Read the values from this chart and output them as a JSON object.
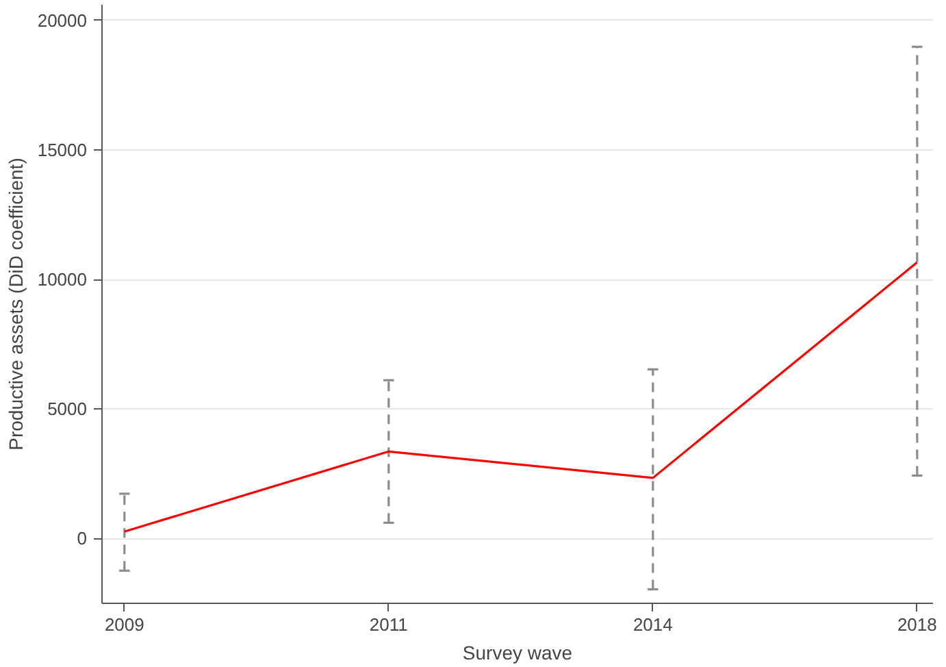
{
  "chart_data": {
    "type": "line",
    "xlabel": "Survey wave",
    "ylabel": "Productive assets (DiD coefficient)",
    "categories": [
      "2009",
      "2011",
      "2014",
      "2018"
    ],
    "series": [
      {
        "color": "#ff0000",
        "values": [
          270,
          3360,
          2340,
          10660
        ],
        "errors": [
          [
            -1240,
            1730
          ],
          [
            610,
            6110
          ],
          [
            -1960,
            6530
          ],
          [
            2430,
            18980
          ]
        ]
      }
    ],
    "ylim": [
      -2500,
      20600
    ],
    "yticks": [
      0,
      5000,
      10000,
      15000,
      20000
    ],
    "grid": "y",
    "marker": "none",
    "line_style": "solid"
  }
}
